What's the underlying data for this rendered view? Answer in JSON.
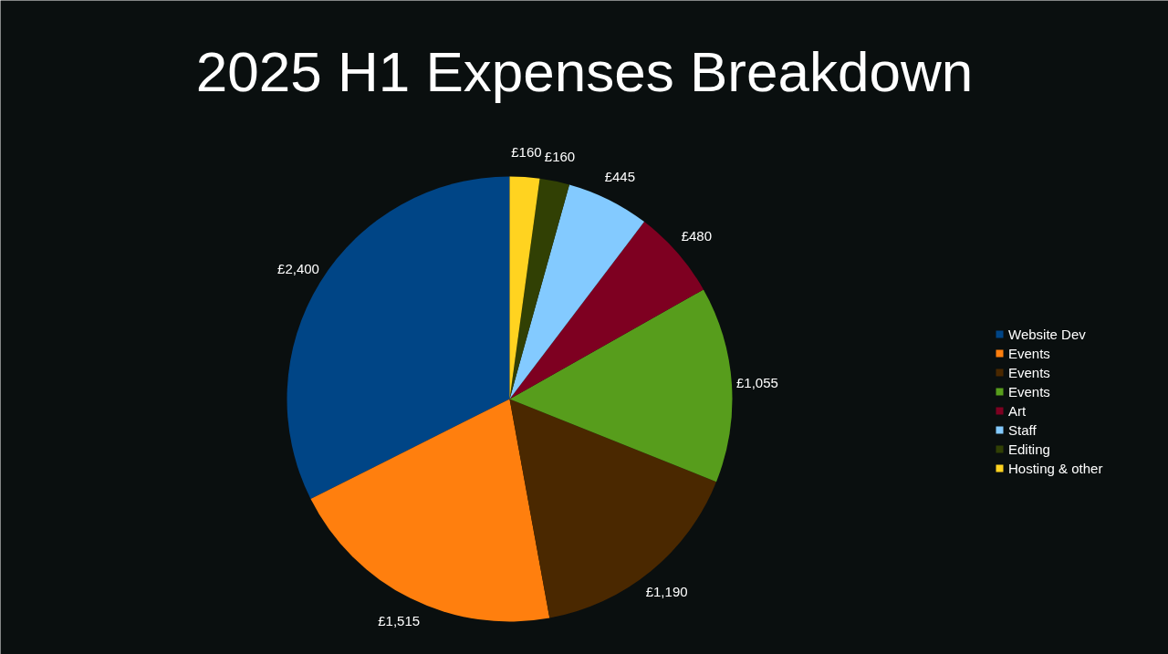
{
  "chart_data": {
    "type": "pie",
    "title": "2025 H1 Expenses Breakdown",
    "categories": [
      "Website Dev",
      "Events",
      "Events",
      "Events",
      "Art",
      "Staff",
      "Editing",
      "Hosting & other"
    ],
    "values": [
      2400,
      1515,
      1190,
      1055,
      480,
      445,
      160,
      160
    ],
    "colors": [
      "#004586",
      "#ff7f0e",
      "#4a2800",
      "#579d1c",
      "#7e0021",
      "#83caff",
      "#314004",
      "#ffd320"
    ],
    "value_labels": [
      "£2,400",
      "£1,515",
      "£1,190",
      "£1,055",
      "£480",
      "£445",
      "£160",
      "£160"
    ],
    "legend": "right"
  }
}
